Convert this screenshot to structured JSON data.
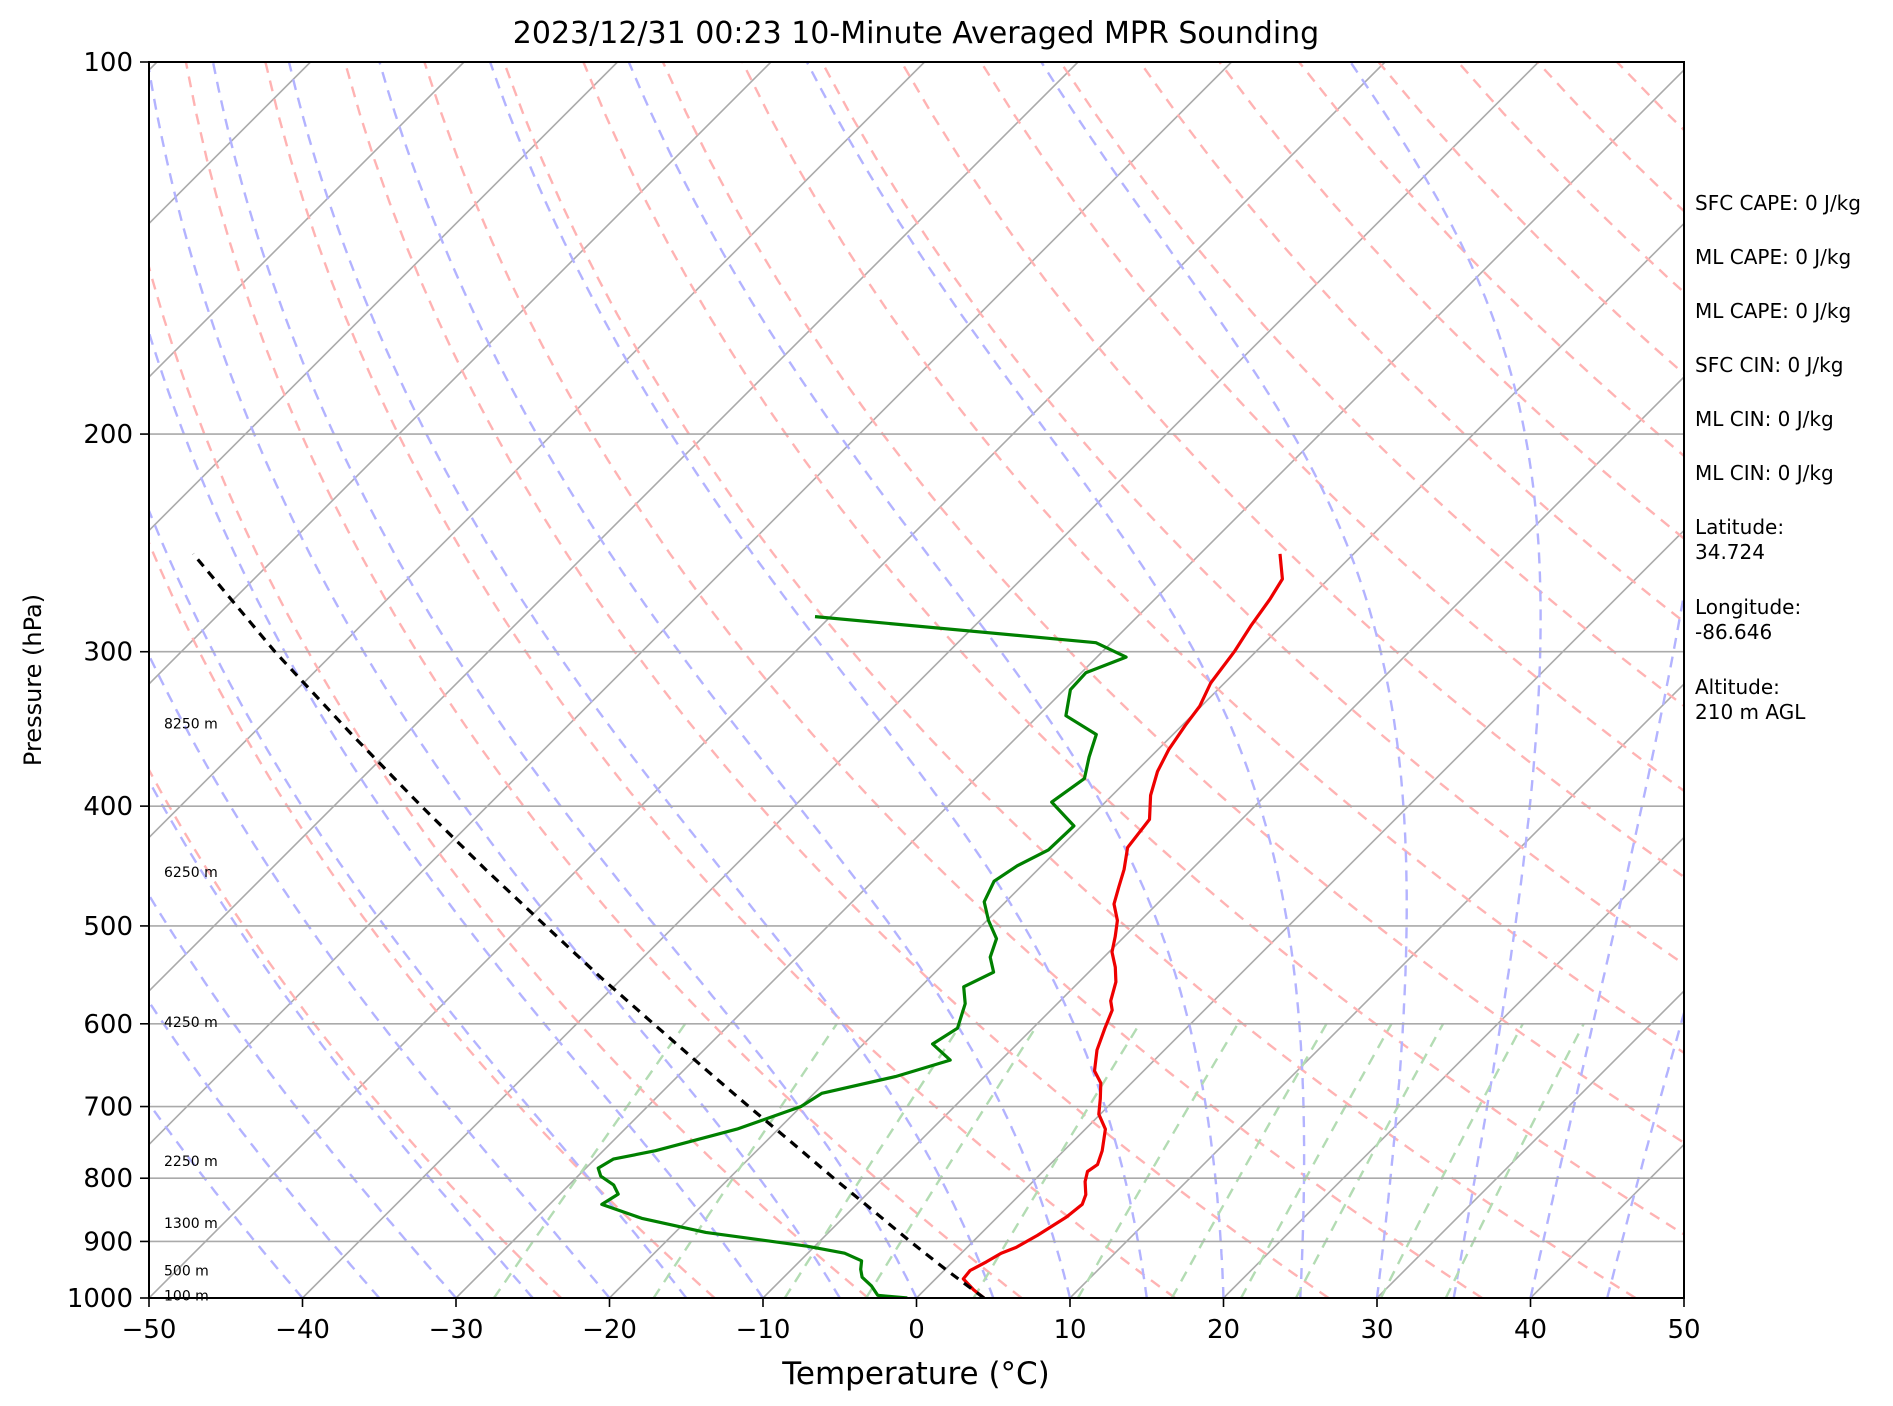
{
  "chart_data": {
    "type": "line",
    "subtype": "skew-t log-p",
    "title": "2023/12/31 00:23 10-Minute Averaged MPR Sounding",
    "xlabel": "Temperature (°C)",
    "ylabel": "Pressure (hPa)",
    "xlim": [
      -50,
      50
    ],
    "ylim": [
      1000,
      100
    ],
    "yscale": "log",
    "x_ticks": [
      "−50",
      "−40",
      "−30",
      "−20",
      "−10",
      "0",
      "10",
      "20",
      "30",
      "40",
      "50"
    ],
    "y_ticks": [
      "100",
      "200",
      "300",
      "400",
      "500",
      "600",
      "700",
      "800",
      "900",
      "1000"
    ],
    "grid": true,
    "series": [
      {
        "color": "#ee0000",
        "points": [
          [
            1000,
            4.4
          ],
          [
            985,
            3.2
          ],
          [
            965,
            1.8
          ],
          [
            950,
            1.7
          ],
          [
            935,
            2.2
          ],
          [
            920,
            2.6
          ],
          [
            910,
            3.2
          ],
          [
            890,
            3.8
          ],
          [
            860,
            4.5
          ],
          [
            840,
            4.7
          ],
          [
            825,
            4.3
          ],
          [
            805,
            3.4
          ],
          [
            790,
            2.9
          ],
          [
            780,
            3.1
          ],
          [
            760,
            2.5
          ],
          [
            730,
            1.3
          ],
          [
            710,
            -0.1
          ],
          [
            690,
            -1.0
          ],
          [
            670,
            -2.0
          ],
          [
            655,
            -3.2
          ],
          [
            630,
            -4.4
          ],
          [
            605,
            -5.3
          ],
          [
            585,
            -6.0
          ],
          [
            575,
            -6.7
          ],
          [
            555,
            -7.6
          ],
          [
            540,
            -8.6
          ],
          [
            525,
            -9.8
          ],
          [
            510,
            -10.6
          ],
          [
            495,
            -11.5
          ],
          [
            480,
            -12.8
          ],
          [
            465,
            -13.6
          ],
          [
            450,
            -14.4
          ],
          [
            432,
            -15.6
          ],
          [
            410,
            -16.0
          ],
          [
            392,
            -17.5
          ],
          [
            375,
            -18.6
          ],
          [
            360,
            -19.3
          ],
          [
            344,
            -19.8
          ],
          [
            332,
            -20.1
          ],
          [
            318,
            -20.9
          ],
          [
            300,
            -21.4
          ],
          [
            286,
            -22.0
          ],
          [
            272,
            -22.5
          ],
          [
            262,
            -23.0
          ],
          [
            250,
            -24.8
          ]
        ]
      },
      {
        "color": "#008000",
        "points": [
          [
            1000,
            -0.6
          ],
          [
            995,
            -2.7
          ],
          [
            978,
            -3.7
          ],
          [
            962,
            -4.9
          ],
          [
            948,
            -5.5
          ],
          [
            933,
            -6.0
          ],
          [
            920,
            -7.6
          ],
          [
            908,
            -10.5
          ],
          [
            885,
            -18.0
          ],
          [
            862,
            -23.1
          ],
          [
            840,
            -26.6
          ],
          [
            824,
            -26.2
          ],
          [
            810,
            -27.1
          ],
          [
            797,
            -28.5
          ],
          [
            785,
            -29.2
          ],
          [
            772,
            -28.8
          ],
          [
            760,
            -26.6
          ],
          [
            730,
            -22.7
          ],
          [
            700,
            -20.0
          ],
          [
            683,
            -19.5
          ],
          [
            662,
            -15.8
          ],
          [
            642,
            -13.3
          ],
          [
            623,
            -15.5
          ],
          [
            605,
            -14.9
          ],
          [
            578,
            -16.0
          ],
          [
            560,
            -17.2
          ],
          [
            545,
            -16.2
          ],
          [
            530,
            -17.4
          ],
          [
            512,
            -18.2
          ],
          [
            495,
            -19.9
          ],
          [
            478,
            -21.4
          ],
          [
            460,
            -22.1
          ],
          [
            447,
            -21.6
          ],
          [
            434,
            -20.6
          ],
          [
            415,
            -20.5
          ],
          [
            397,
            -23.5
          ],
          [
            380,
            -22.9
          ],
          [
            365,
            -24.0
          ],
          [
            350,
            -25.0
          ],
          [
            338,
            -28.2
          ],
          [
            322,
            -29.6
          ],
          [
            312,
            -29.7
          ],
          [
            303,
            -28.1
          ],
          [
            295,
            -31.0
          ],
          [
            281,
            -51.0
          ]
        ]
      },
      {
        "color": "#000000",
        "dashed": true,
        "points": [
          [
            1000,
            4.4
          ],
          [
            950,
            0.2
          ],
          [
            900,
            -4.1
          ],
          [
            850,
            -8.5
          ],
          [
            800,
            -13.2
          ],
          [
            750,
            -18.1
          ],
          [
            700,
            -23.4
          ],
          [
            650,
            -29.0
          ],
          [
            600,
            -35.0
          ],
          [
            550,
            -41.5
          ],
          [
            500,
            -48.4
          ],
          [
            450,
            -56.0
          ],
          [
            400,
            -64.3
          ],
          [
            350,
            -73.5
          ],
          [
            300,
            -83.9
          ],
          [
            250,
            -95.6
          ]
        ]
      }
    ],
    "height_labels": [
      "100 m",
      "500 m",
      "1300 m",
      "2250 m",
      "4250 m",
      "6250 m",
      "8250 m"
    ],
    "height_label_pressures": [
      995,
      950,
      870,
      775,
      598,
      452,
      343
    ],
    "annotations": [
      "SFC CAPE: 0 J/kg",
      "ML CAPE: 0 J/kg",
      "ML CAPE: 0 J/kg",
      "SFC CIN: 0 J/kg",
      "ML CIN: 0 J/kg",
      "ML CIN: 0 J/kg",
      "Latitude:\n34.724",
      "Longitude:\n-86.646",
      "Altitude:\n210 m AGL"
    ],
    "colors": {
      "isotherm": "#aaaaaa",
      "dry_adiabat": "#ffb3b3",
      "moist_adiabat": "#b3b3ff",
      "mixing_ratio": "#b3dcb3",
      "isobar": "#aaaaaa",
      "temperature": "#ee0000",
      "dewpoint": "#008000",
      "parcel": "#000000"
    }
  }
}
